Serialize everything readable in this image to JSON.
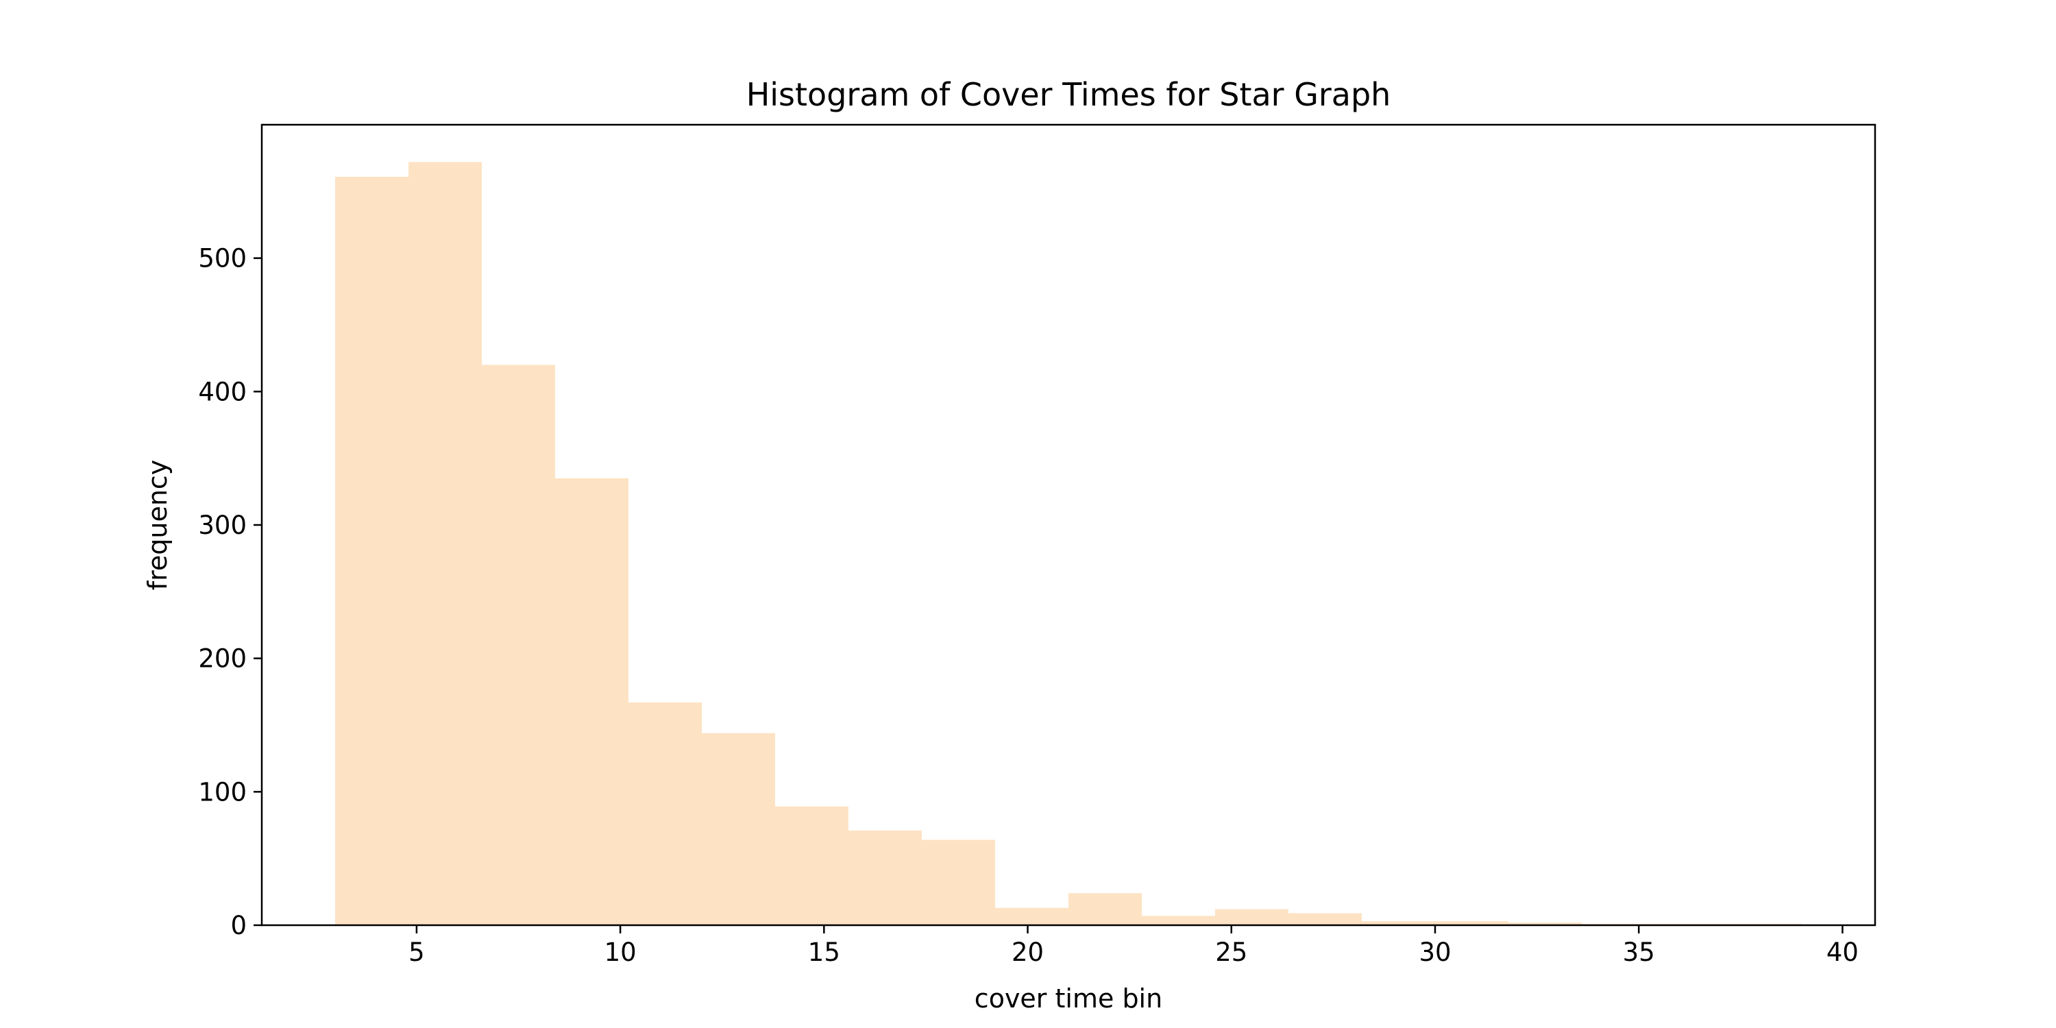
{
  "chart_data": {
    "type": "bar",
    "title": "Histogram of Cover Times for Star Graph",
    "xlabel": "cover time bin",
    "ylabel": "frequency",
    "xlim": [
      1.2,
      40.8
    ],
    "ylim": [
      0,
      600
    ],
    "xticks": [
      5,
      10,
      15,
      20,
      25,
      30,
      35,
      40
    ],
    "yticks": [
      0,
      100,
      200,
      300,
      400,
      500
    ],
    "bar_color": "#fde3c4",
    "bins": [
      {
        "x0": 3.0,
        "x1": 4.8,
        "value": 561
      },
      {
        "x0": 4.8,
        "x1": 6.6,
        "value": 572
      },
      {
        "x0": 6.6,
        "x1": 8.4,
        "value": 420
      },
      {
        "x0": 8.4,
        "x1": 10.2,
        "value": 335
      },
      {
        "x0": 10.2,
        "x1": 12.0,
        "value": 167
      },
      {
        "x0": 12.0,
        "x1": 13.8,
        "value": 144
      },
      {
        "x0": 13.8,
        "x1": 15.6,
        "value": 89
      },
      {
        "x0": 15.6,
        "x1": 17.4,
        "value": 71
      },
      {
        "x0": 17.4,
        "x1": 19.2,
        "value": 64
      },
      {
        "x0": 19.2,
        "x1": 21.0,
        "value": 13
      },
      {
        "x0": 21.0,
        "x1": 22.8,
        "value": 24
      },
      {
        "x0": 22.8,
        "x1": 24.6,
        "value": 7
      },
      {
        "x0": 24.6,
        "x1": 26.4,
        "value": 12
      },
      {
        "x0": 26.4,
        "x1": 28.2,
        "value": 9
      },
      {
        "x0": 28.2,
        "x1": 30.0,
        "value": 3
      },
      {
        "x0": 30.0,
        "x1": 31.8,
        "value": 3
      },
      {
        "x0": 31.8,
        "x1": 33.6,
        "value": 2
      },
      {
        "x0": 33.6,
        "x1": 35.4,
        "value": 1
      },
      {
        "x0": 35.4,
        "x1": 37.2,
        "value": 1
      },
      {
        "x0": 37.2,
        "x1": 39.0,
        "value": 1
      }
    ],
    "grid": false,
    "legend": null
  }
}
